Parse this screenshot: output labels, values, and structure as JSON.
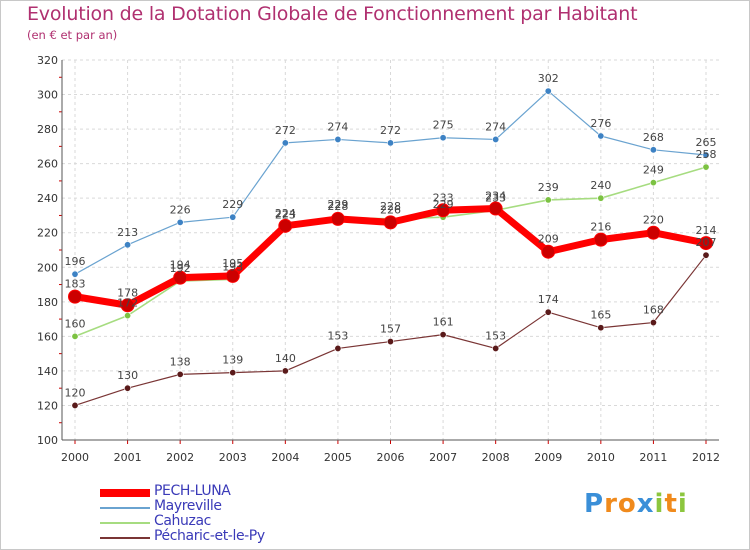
{
  "header": {
    "title": "Evolution de la Dotation Globale de Fonctionnement par Habitant",
    "subtitle": "(en € et par an)"
  },
  "logo": {
    "text": "Proxiti",
    "letters": [
      {
        "ch": "P",
        "color": "#3a8fd8"
      },
      {
        "ch": "r",
        "color": "#f08a1c"
      },
      {
        "ch": "o",
        "color": "#f08a1c"
      },
      {
        "ch": "x",
        "color": "#3a8fd8"
      },
      {
        "ch": "i",
        "color": "#8cc63e"
      },
      {
        "ch": "t",
        "color": "#f08a1c"
      },
      {
        "ch": "i",
        "color": "#8cc63e"
      }
    ]
  },
  "chart_data": {
    "type": "line",
    "title": "Evolution de la Dotation Globale de Fonctionnement par Habitant",
    "subtitle": "(en € et par an)",
    "xlabel": "",
    "ylabel": "",
    "x": [
      "2000",
      "2001",
      "2002",
      "2003",
      "2004",
      "2005",
      "2006",
      "2007",
      "2008",
      "2009",
      "2010",
      "2011",
      "2012"
    ],
    "ylim": [
      100,
      320
    ],
    "yticks": [
      100,
      120,
      140,
      160,
      180,
      200,
      220,
      240,
      260,
      280,
      300,
      320
    ],
    "grid": true,
    "legend_position": "bottom-left",
    "series": [
      {
        "name": "PECH-LUNA",
        "color": "#ff0000",
        "marker_color": "#cc0000",
        "values": [
          183,
          178,
          194,
          195,
          224,
          228,
          226,
          233,
          234,
          209,
          216,
          220,
          214
        ]
      },
      {
        "name": "Mayreville",
        "color": "#6aa3d0",
        "marker_color": "#3d82c4",
        "values": [
          196,
          213,
          226,
          229,
          272,
          274,
          272,
          275,
          274,
          302,
          276,
          268,
          265
        ]
      },
      {
        "name": "Cahuzac",
        "color": "#a6dc80",
        "marker_color": "#7cc242",
        "values": [
          160,
          172,
          192,
          193,
          223,
          229,
          228,
          229,
          233,
          239,
          240,
          249,
          258
        ]
      },
      {
        "name": "Pécharic-et-le-Py",
        "color": "#7a3535",
        "marker_color": "#5a1a1a",
        "values": [
          120,
          130,
          138,
          139,
          140,
          153,
          157,
          161,
          153,
          174,
          165,
          168,
          207
        ]
      }
    ]
  }
}
